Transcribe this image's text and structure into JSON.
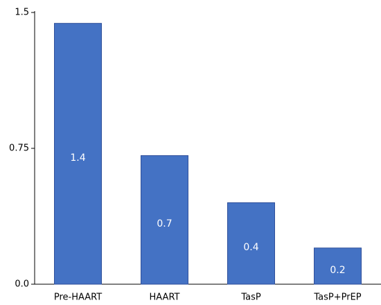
{
  "chart_data": {
    "type": "bar",
    "categories": [
      "Pre-HAART",
      "HAART",
      "TasP",
      "TasP+PrEP"
    ],
    "values": [
      1.44,
      0.71,
      0.45,
      0.2
    ],
    "value_labels": [
      "1.4",
      "0.7",
      "0.4",
      "0.2"
    ],
    "color": "#4472c4",
    "ylim": [
      0,
      1.5
    ],
    "yticks": [
      {
        "value": 0,
        "label": "0.0"
      },
      0.75,
      1.5
    ],
    "grid": false
  }
}
